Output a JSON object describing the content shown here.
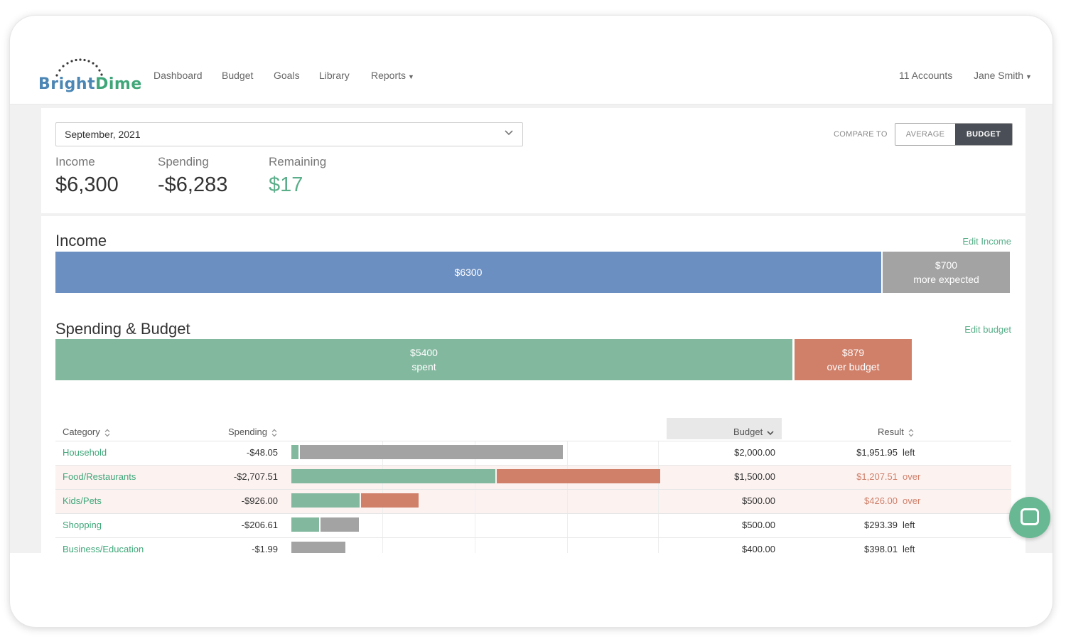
{
  "header": {
    "logo_bright": "Bright",
    "logo_dime": "Dime",
    "nav": [
      "Dashboard",
      "Budget",
      "Goals",
      "Library",
      "Reports"
    ],
    "accounts": "11 Accounts",
    "user": "Jane Smith"
  },
  "summary": {
    "month": "September, 2021",
    "income_label": "Income",
    "income_value": "$6,300",
    "spending_label": "Spending",
    "spending_value": "-$6,283",
    "remaining_label": "Remaining",
    "remaining_value": "$17",
    "compare_label": "COMPARE TO",
    "compare_average": "AVERAGE",
    "compare_budget": "BUDGET"
  },
  "income": {
    "title": "Income",
    "edit_label": "Edit Income",
    "received_label": "$6300",
    "expected_amount": "$700",
    "expected_label": "more expected",
    "received_value": 6300,
    "expected_value": 700
  },
  "spending": {
    "title": "Spending & Budget",
    "edit_label": "Edit budget",
    "spent_amount": "$5400",
    "spent_label": "spent",
    "over_amount": "$879",
    "over_label": "over budget"
  },
  "table": {
    "headers": {
      "category": "Category",
      "spending": "Spending",
      "budget": "Budget",
      "result": "Result"
    },
    "rows": [
      {
        "category": "Household",
        "spending": "-$48.05",
        "budget": "$2,000.00",
        "result": "$1,951.95",
        "result_word": "left",
        "status": "left",
        "spent": 48.05,
        "budget_value": 2000
      },
      {
        "category": "Food/Restaurants",
        "spending": "-$2,707.51",
        "budget": "$1,500.00",
        "result": "$1,207.51",
        "result_word": "over",
        "status": "over",
        "spent": 2707.51,
        "budget_value": 1500
      },
      {
        "category": "Kids/Pets",
        "spending": "-$926.00",
        "budget": "$500.00",
        "result": "$426.00",
        "result_word": "over",
        "status": "over",
        "spent": 926,
        "budget_value": 500
      },
      {
        "category": "Shopping",
        "spending": "-$206.61",
        "budget": "$500.00",
        "result": "$293.39",
        "result_word": "left",
        "status": "left",
        "spent": 206.61,
        "budget_value": 500
      },
      {
        "category": "Business/Education",
        "spending": "-$1.99",
        "budget": "$400.00",
        "result": "$398.01",
        "result_word": "left",
        "status": "left",
        "spent": 1.99,
        "budget_value": 400
      }
    ]
  },
  "colors": {
    "income_blue": "#6c8fc2",
    "expected_gray": "#a3a3a3",
    "spent_green": "#82b89e",
    "over_red": "#d07f69",
    "link_green": "#3fa679"
  }
}
